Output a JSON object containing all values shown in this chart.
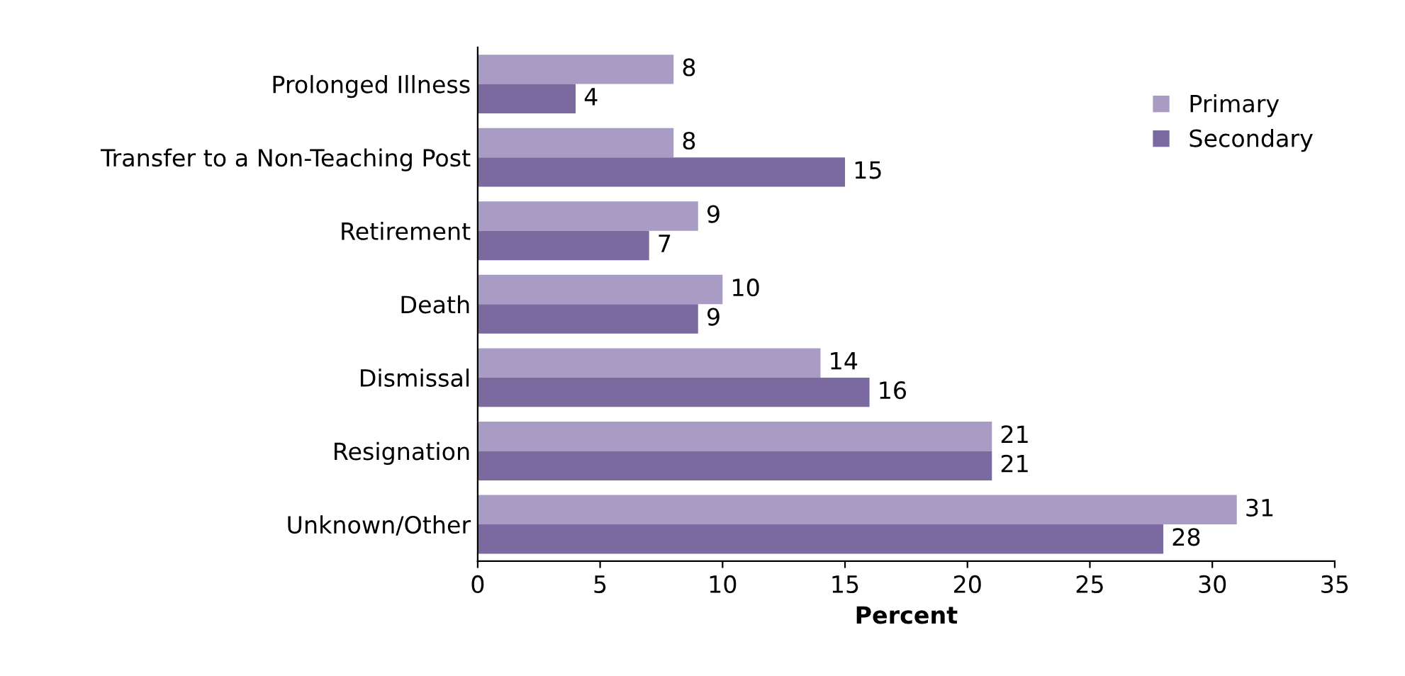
{
  "chart_data": {
    "type": "bar",
    "orientation": "horizontal",
    "xlabel": "Percent",
    "categories": [
      "Prolonged Illness",
      "Transfer to a Non-Teaching Post",
      "Retirement",
      "Death",
      "Dismissal",
      "Resignation",
      "Unknown/Other"
    ],
    "series": [
      {
        "name": "Primary",
        "color": "#a99cc4",
        "values": [
          8,
          8,
          9,
          10,
          14,
          21,
          31
        ]
      },
      {
        "name": "Secondary",
        "color": "#7b6a9f",
        "values": [
          4,
          15,
          7,
          9,
          16,
          21,
          28
        ]
      }
    ],
    "xlim": [
      0,
      35
    ],
    "xticks": [
      0,
      5,
      10,
      15,
      20,
      25,
      30,
      35
    ],
    "data_labels": true,
    "legend": "top right",
    "grid": false
  }
}
